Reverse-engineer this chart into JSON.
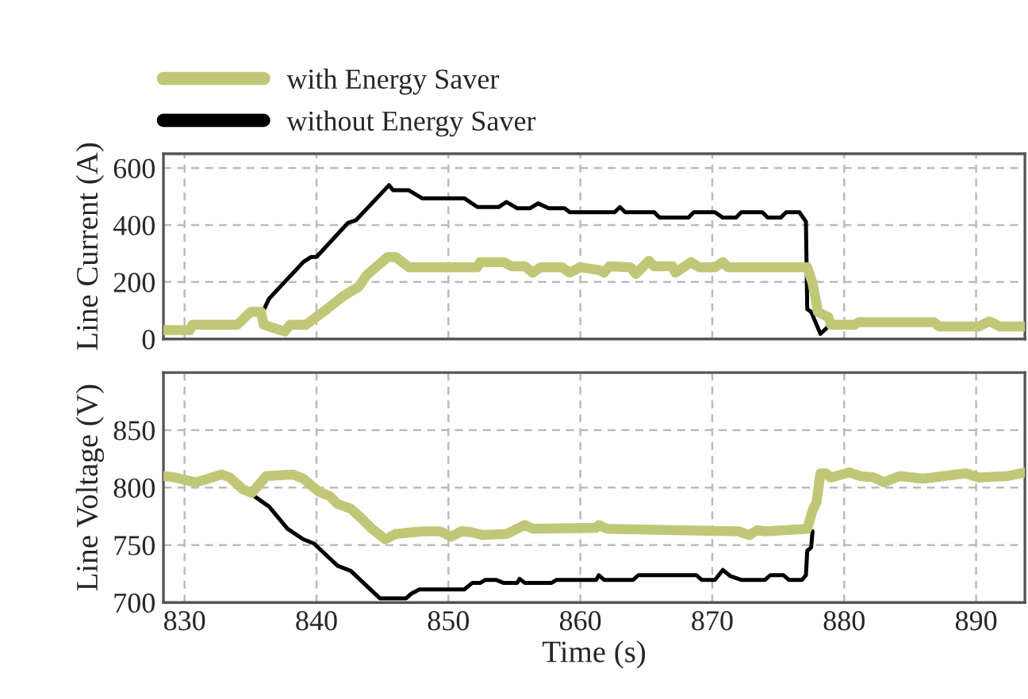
{
  "chart_data": [
    {
      "type": "line",
      "ylabel": "Line Current (A)",
      "xlim": [
        828.4,
        893.7
      ],
      "xticks": [
        830,
        840,
        850,
        860,
        870,
        880,
        890
      ],
      "ylim": [
        0,
        650
      ],
      "yticks": [
        0,
        200,
        400,
        600
      ],
      "tick_labels": "y",
      "grid": true,
      "legend": "top left",
      "line_style": "solid",
      "marker": "none",
      "series": [
        {
          "name": "with Energy Saver",
          "color": "#c0c878",
          "x": [
            828.4,
            830.4,
            830.6,
            834.0,
            835.0,
            835.8,
            836.0,
            837.6,
            838.0,
            839.2,
            840.8,
            842.0,
            843.2,
            843.8,
            845.4,
            846.0,
            847.0,
            852.2,
            852.4,
            854.2,
            854.8,
            855.8,
            856.4,
            857.0,
            858.6,
            859.2,
            860.0,
            861.4,
            861.8,
            862.2,
            863.8,
            864.2,
            865.2,
            865.6,
            867.0,
            867.2,
            868.4,
            869.0,
            870.2,
            870.8,
            871.2,
            877.2,
            877.6,
            877.8,
            878.0,
            878.8,
            879.0,
            880.8,
            881.1,
            886.8,
            887.2,
            890.2,
            891.0,
            891.8,
            893.7
          ],
          "values": [
            31,
            31,
            50,
            50,
            95,
            95,
            50,
            26,
            50,
            50,
            105,
            150,
            183,
            224,
            288,
            288,
            252,
            252,
            270,
            270,
            255,
            255,
            233,
            252,
            252,
            233,
            252,
            242,
            233,
            255,
            252,
            228,
            275,
            255,
            255,
            233,
            270,
            252,
            252,
            270,
            252,
            252,
            196,
            150,
            95,
            77,
            50,
            50,
            59,
            59,
            44,
            44,
            62,
            44,
            44
          ]
        },
        {
          "name": "without Energy Saver",
          "color": "#000000",
          "x": [
            835.9,
            836.4,
            837.4,
            839.0,
            839.6,
            840.0,
            842.4,
            843.0,
            845.5,
            845.8,
            847.0,
            848.0,
            851.2,
            852.2,
            853.8,
            854.4,
            855.2,
            856.2,
            856.8,
            857.6,
            858.8,
            859.2,
            862.6,
            863.0,
            863.4,
            865.6,
            866.0,
            868.2,
            868.6,
            870.2,
            870.8,
            871.8,
            872.2,
            873.8,
            874.2,
            875.2,
            875.6,
            876.6,
            877.1,
            877.2,
            877.5,
            878.2,
            878.8
          ],
          "values": [
            92,
            141,
            191,
            270,
            288,
            288,
            408,
            417,
            540,
            522,
            522,
            494,
            494,
            463,
            463,
            481,
            459,
            459,
            476,
            459,
            459,
            445,
            445,
            463,
            445,
            445,
            426,
            426,
            445,
            445,
            426,
            426,
            445,
            445,
            426,
            426,
            445,
            445,
            412,
            105,
            95,
            18,
            44
          ]
        }
      ]
    },
    {
      "type": "line",
      "xlabel": "Time (s)",
      "ylabel": "Line Voltage (V)",
      "xlim": [
        828.4,
        893.7
      ],
      "xticks": [
        830,
        840,
        850,
        860,
        870,
        880,
        890
      ],
      "ylim": [
        700,
        900
      ],
      "yticks": [
        700,
        750,
        800,
        850
      ],
      "grid": true,
      "line_style": "solid",
      "marker": "none",
      "series": [
        {
          "color": "#c0c878",
          "x": [
            828.4,
            829.2,
            830.8,
            831.8,
            832.8,
            833.4,
            834.4,
            835.1,
            836.2,
            838.2,
            839.0,
            840.2,
            841.0,
            841.6,
            842.6,
            843.4,
            844.2,
            845.2,
            846.0,
            848.0,
            849.4,
            850.2,
            851.0,
            851.8,
            852.6,
            854.4,
            855.8,
            856.4,
            861.2,
            861.4,
            862.0,
            872.0,
            872.8,
            873.4,
            874.0,
            877.2,
            877.6,
            877.9,
            878.2,
            878.6,
            879.0,
            880.4,
            881.2,
            882.2,
            883.0,
            884.2,
            886.0,
            889.2,
            890.2,
            892.4,
            893.7
          ],
          "values": [
            810,
            809,
            804.5,
            807.7,
            811.4,
            809,
            798.6,
            795.3,
            810,
            811.4,
            807.7,
            796.3,
            792.6,
            785.7,
            781.6,
            773.3,
            764.2,
            755,
            759.6,
            761.9,
            761.9,
            757.3,
            762,
            761,
            758.7,
            759.6,
            767.4,
            764.2,
            765,
            767.4,
            764.2,
            761.9,
            758.7,
            762.9,
            761.9,
            764.2,
            780,
            787,
            812.4,
            812.4,
            808.7,
            813.2,
            810,
            809,
            804.5,
            810,
            807.7,
            812.4,
            808.7,
            810,
            813.2
          ]
        },
        {
          "color": "#000000",
          "x": [
            835.1,
            836.4,
            837.8,
            838.4,
            839.0,
            839.8,
            841.6,
            842.6,
            844.8,
            846.8,
            847.2,
            847.8,
            851.2,
            851.8,
            852.4,
            852.8,
            853.6,
            854.2,
            855.2,
            855.4,
            855.8,
            857.8,
            858.2,
            861.2,
            861.4,
            861.8,
            864.0,
            864.4,
            868.8,
            869.2,
            870.2,
            870.8,
            871.4,
            872.2,
            874.0,
            874.4,
            875.4,
            875.8,
            876.8,
            877.1,
            877.2,
            877.5,
            877.6
          ],
          "values": [
            794,
            783.5,
            764.2,
            759.6,
            755,
            751.4,
            732,
            727.5,
            703.7,
            703.7,
            707.8,
            711.4,
            711.4,
            717,
            717,
            719.7,
            719.7,
            717,
            717,
            720.6,
            717,
            717,
            719.7,
            719.7,
            723.8,
            719.7,
            719.7,
            723.8,
            723.8,
            719.7,
            719.7,
            728.3,
            722.8,
            719.7,
            719.7,
            723.8,
            723.8,
            719.7,
            719.7,
            723.8,
            745,
            748,
            762
          ]
        }
      ]
    }
  ]
}
